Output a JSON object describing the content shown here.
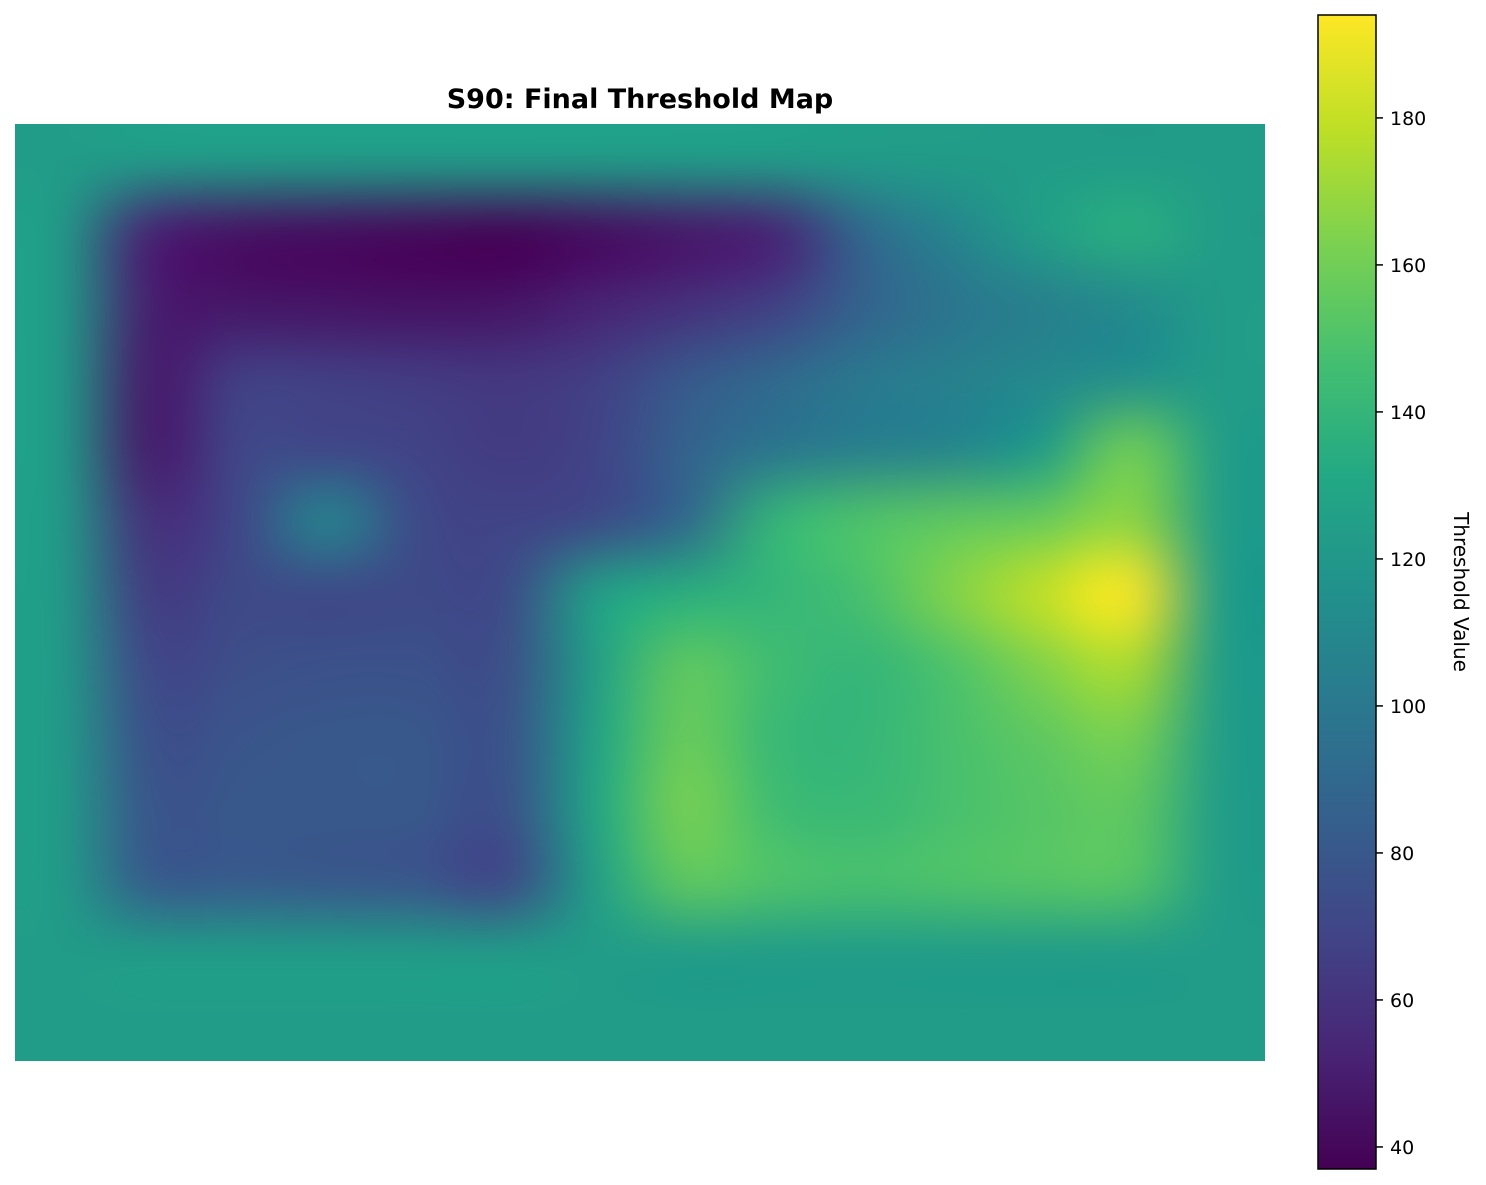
{
  "chart_data": {
    "type": "heatmap",
    "title": "S90: Final Threshold Map",
    "colormap": "viridis",
    "axes_visible": false,
    "grid": false,
    "vmin": 37,
    "vmax": 194,
    "border_value": 123,
    "colorbar": {
      "label": "Threshold Value",
      "ticks": [
        40,
        60,
        80,
        100,
        120,
        140,
        160,
        180
      ],
      "tick_labels": [
        "40",
        "60",
        "80",
        "100",
        "120",
        "140",
        "160",
        "180"
      ],
      "placement": "right"
    },
    "grid_columns": 14,
    "grid_rows": 13,
    "values": [
      [
        123,
        123,
        123,
        123,
        123,
        123,
        123,
        123,
        123,
        123,
        123,
        123,
        123,
        123
      ],
      [
        123,
        52,
        44,
        42,
        40,
        38,
        42,
        47,
        52,
        90,
        108,
        125,
        135,
        123
      ],
      [
        123,
        50,
        46,
        45,
        44,
        45,
        52,
        58,
        66,
        86,
        98,
        105,
        112,
        123
      ],
      [
        123,
        48,
        66,
        66,
        64,
        62,
        66,
        80,
        90,
        100,
        105,
        110,
        114,
        123
      ],
      [
        123,
        48,
        70,
        70,
        68,
        64,
        68,
        86,
        98,
        104,
        108,
        122,
        160,
        123
      ],
      [
        123,
        58,
        70,
        108,
        72,
        68,
        72,
        90,
        140,
        150,
        155,
        158,
        168,
        123
      ],
      [
        123,
        64,
        72,
        72,
        72,
        72,
        125,
        135,
        140,
        148,
        165,
        180,
        194,
        123
      ],
      [
        123,
        70,
        74,
        76,
        76,
        74,
        125,
        155,
        145,
        140,
        150,
        165,
        175,
        123
      ],
      [
        123,
        75,
        78,
        80,
        80,
        76,
        128,
        158,
        142,
        140,
        148,
        155,
        162,
        123
      ],
      [
        123,
        78,
        80,
        80,
        80,
        75,
        130,
        162,
        145,
        142,
        148,
        152,
        155,
        123
      ],
      [
        123,
        82,
        82,
        80,
        78,
        70,
        125,
        155,
        150,
        148,
        150,
        152,
        152,
        123
      ],
      [
        123,
        123,
        123,
        123,
        123,
        123,
        123,
        123,
        123,
        123,
        123,
        123,
        123,
        123
      ],
      [
        123,
        123,
        123,
        123,
        123,
        123,
        123,
        123,
        123,
        123,
        123,
        123,
        123,
        123
      ]
    ]
  }
}
